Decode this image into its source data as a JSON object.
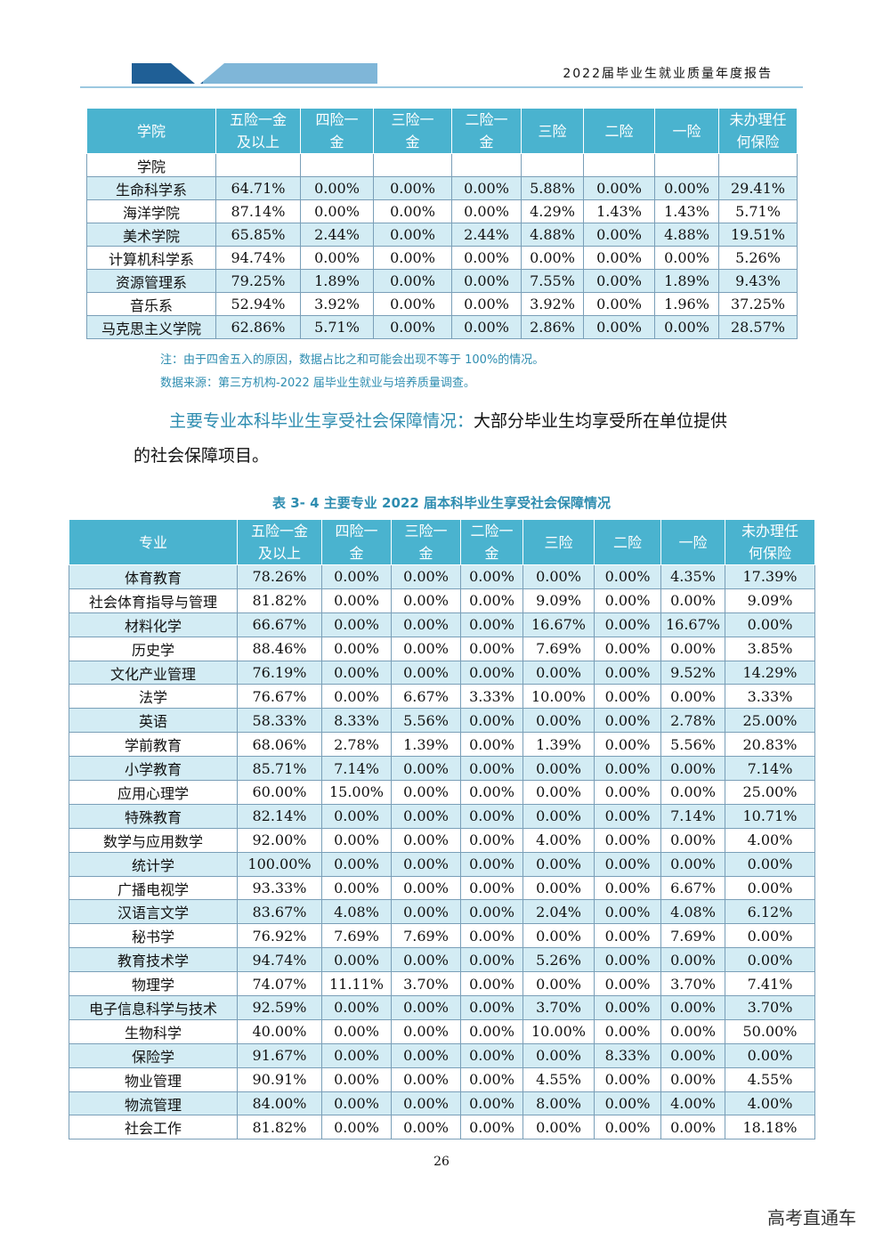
{
  "header": {
    "title": "2022届毕业生就业质量年度报告"
  },
  "table1": {
    "headers": [
      "学院",
      "五险一金\n及以上",
      "四险一\n金",
      "三险一\n金",
      "二险一\n金",
      "三险",
      "二险",
      "一险",
      "未办理任\n何保险"
    ],
    "rows": [
      [
        "学院",
        "",
        "",
        "",
        "",
        "",
        "",
        "",
        ""
      ],
      [
        "生命科学系",
        "64.71%",
        "0.00%",
        "0.00%",
        "0.00%",
        "5.88%",
        "0.00%",
        "0.00%",
        "29.41%"
      ],
      [
        "海洋学院",
        "87.14%",
        "0.00%",
        "0.00%",
        "0.00%",
        "4.29%",
        "1.43%",
        "1.43%",
        "5.71%"
      ],
      [
        "美术学院",
        "65.85%",
        "2.44%",
        "0.00%",
        "2.44%",
        "4.88%",
        "0.00%",
        "4.88%",
        "19.51%"
      ],
      [
        "计算机科学系",
        "94.74%",
        "0.00%",
        "0.00%",
        "0.00%",
        "0.00%",
        "0.00%",
        "0.00%",
        "5.26%"
      ],
      [
        "资源管理系",
        "79.25%",
        "1.89%",
        "0.00%",
        "0.00%",
        "7.55%",
        "0.00%",
        "1.89%",
        "9.43%"
      ],
      [
        "音乐系",
        "52.94%",
        "3.92%",
        "0.00%",
        "0.00%",
        "3.92%",
        "0.00%",
        "1.96%",
        "37.25%"
      ],
      [
        "马克思主义学院",
        "62.86%",
        "5.71%",
        "0.00%",
        "0.00%",
        "2.86%",
        "0.00%",
        "0.00%",
        "28.57%"
      ]
    ]
  },
  "notes": {
    "note": "注：由于四舍五入的原因，数据占比之和可能会出现不等于 100%的情况。",
    "source": "数据来源：第三方机构-2022 届毕业生就业与培养质量调查。"
  },
  "paragraph": {
    "lead": "主要专业本科毕业生享受社会保障情况：",
    "line1_rest": "大部分毕业生均享受所在单位提供",
    "line2": "的社会保障项目。"
  },
  "table2": {
    "caption": "表 3- 4    主要专业 2022 届本科毕业生享受社会保障情况",
    "headers": [
      "专业",
      "五险一金\n及以上",
      "四险一\n金",
      "三险一\n金",
      "二险一\n金",
      "三险",
      "二险",
      "一险",
      "未办理任\n何保险"
    ],
    "rows": [
      [
        "体育教育",
        "78.26%",
        "0.00%",
        "0.00%",
        "0.00%",
        "0.00%",
        "0.00%",
        "4.35%",
        "17.39%"
      ],
      [
        "社会体育指导与管理",
        "81.82%",
        "0.00%",
        "0.00%",
        "0.00%",
        "9.09%",
        "0.00%",
        "0.00%",
        "9.09%"
      ],
      [
        "材料化学",
        "66.67%",
        "0.00%",
        "0.00%",
        "0.00%",
        "16.67%",
        "0.00%",
        "16.67%",
        "0.00%"
      ],
      [
        "历史学",
        "88.46%",
        "0.00%",
        "0.00%",
        "0.00%",
        "7.69%",
        "0.00%",
        "0.00%",
        "3.85%"
      ],
      [
        "文化产业管理",
        "76.19%",
        "0.00%",
        "0.00%",
        "0.00%",
        "0.00%",
        "0.00%",
        "9.52%",
        "14.29%"
      ],
      [
        "法学",
        "76.67%",
        "0.00%",
        "6.67%",
        "3.33%",
        "10.00%",
        "0.00%",
        "0.00%",
        "3.33%"
      ],
      [
        "英语",
        "58.33%",
        "8.33%",
        "5.56%",
        "0.00%",
        "0.00%",
        "0.00%",
        "2.78%",
        "25.00%"
      ],
      [
        "学前教育",
        "68.06%",
        "2.78%",
        "1.39%",
        "0.00%",
        "1.39%",
        "0.00%",
        "5.56%",
        "20.83%"
      ],
      [
        "小学教育",
        "85.71%",
        "7.14%",
        "0.00%",
        "0.00%",
        "0.00%",
        "0.00%",
        "0.00%",
        "7.14%"
      ],
      [
        "应用心理学",
        "60.00%",
        "15.00%",
        "0.00%",
        "0.00%",
        "0.00%",
        "0.00%",
        "0.00%",
        "25.00%"
      ],
      [
        "特殊教育",
        "82.14%",
        "0.00%",
        "0.00%",
        "0.00%",
        "0.00%",
        "0.00%",
        "7.14%",
        "10.71%"
      ],
      [
        "数学与应用数学",
        "92.00%",
        "0.00%",
        "0.00%",
        "0.00%",
        "4.00%",
        "0.00%",
        "0.00%",
        "4.00%"
      ],
      [
        "统计学",
        "100.00%",
        "0.00%",
        "0.00%",
        "0.00%",
        "0.00%",
        "0.00%",
        "0.00%",
        "0.00%"
      ],
      [
        "广播电视学",
        "93.33%",
        "0.00%",
        "0.00%",
        "0.00%",
        "0.00%",
        "0.00%",
        "6.67%",
        "0.00%"
      ],
      [
        "汉语言文学",
        "83.67%",
        "4.08%",
        "0.00%",
        "0.00%",
        "2.04%",
        "0.00%",
        "4.08%",
        "6.12%"
      ],
      [
        "秘书学",
        "76.92%",
        "7.69%",
        "7.69%",
        "0.00%",
        "0.00%",
        "0.00%",
        "7.69%",
        "0.00%"
      ],
      [
        "教育技术学",
        "94.74%",
        "0.00%",
        "0.00%",
        "0.00%",
        "5.26%",
        "0.00%",
        "0.00%",
        "0.00%"
      ],
      [
        "物理学",
        "74.07%",
        "11.11%",
        "3.70%",
        "0.00%",
        "0.00%",
        "0.00%",
        "3.70%",
        "7.41%"
      ],
      [
        "电子信息科学与技术",
        "92.59%",
        "0.00%",
        "0.00%",
        "0.00%",
        "3.70%",
        "0.00%",
        "0.00%",
        "3.70%"
      ],
      [
        "生物科学",
        "40.00%",
        "0.00%",
        "0.00%",
        "0.00%",
        "10.00%",
        "0.00%",
        "0.00%",
        "50.00%"
      ],
      [
        "保险学",
        "91.67%",
        "0.00%",
        "0.00%",
        "0.00%",
        "0.00%",
        "8.33%",
        "0.00%",
        "0.00%"
      ],
      [
        "物业管理",
        "90.91%",
        "0.00%",
        "0.00%",
        "0.00%",
        "4.55%",
        "0.00%",
        "0.00%",
        "4.55%"
      ],
      [
        "物流管理",
        "84.00%",
        "0.00%",
        "0.00%",
        "0.00%",
        "8.00%",
        "0.00%",
        "4.00%",
        "4.00%"
      ],
      [
        "社会工作",
        "81.82%",
        "0.00%",
        "0.00%",
        "0.00%",
        "0.00%",
        "0.00%",
        "0.00%",
        "18.18%"
      ]
    ]
  },
  "page_number": "26",
  "watermark": "高考直通车"
}
